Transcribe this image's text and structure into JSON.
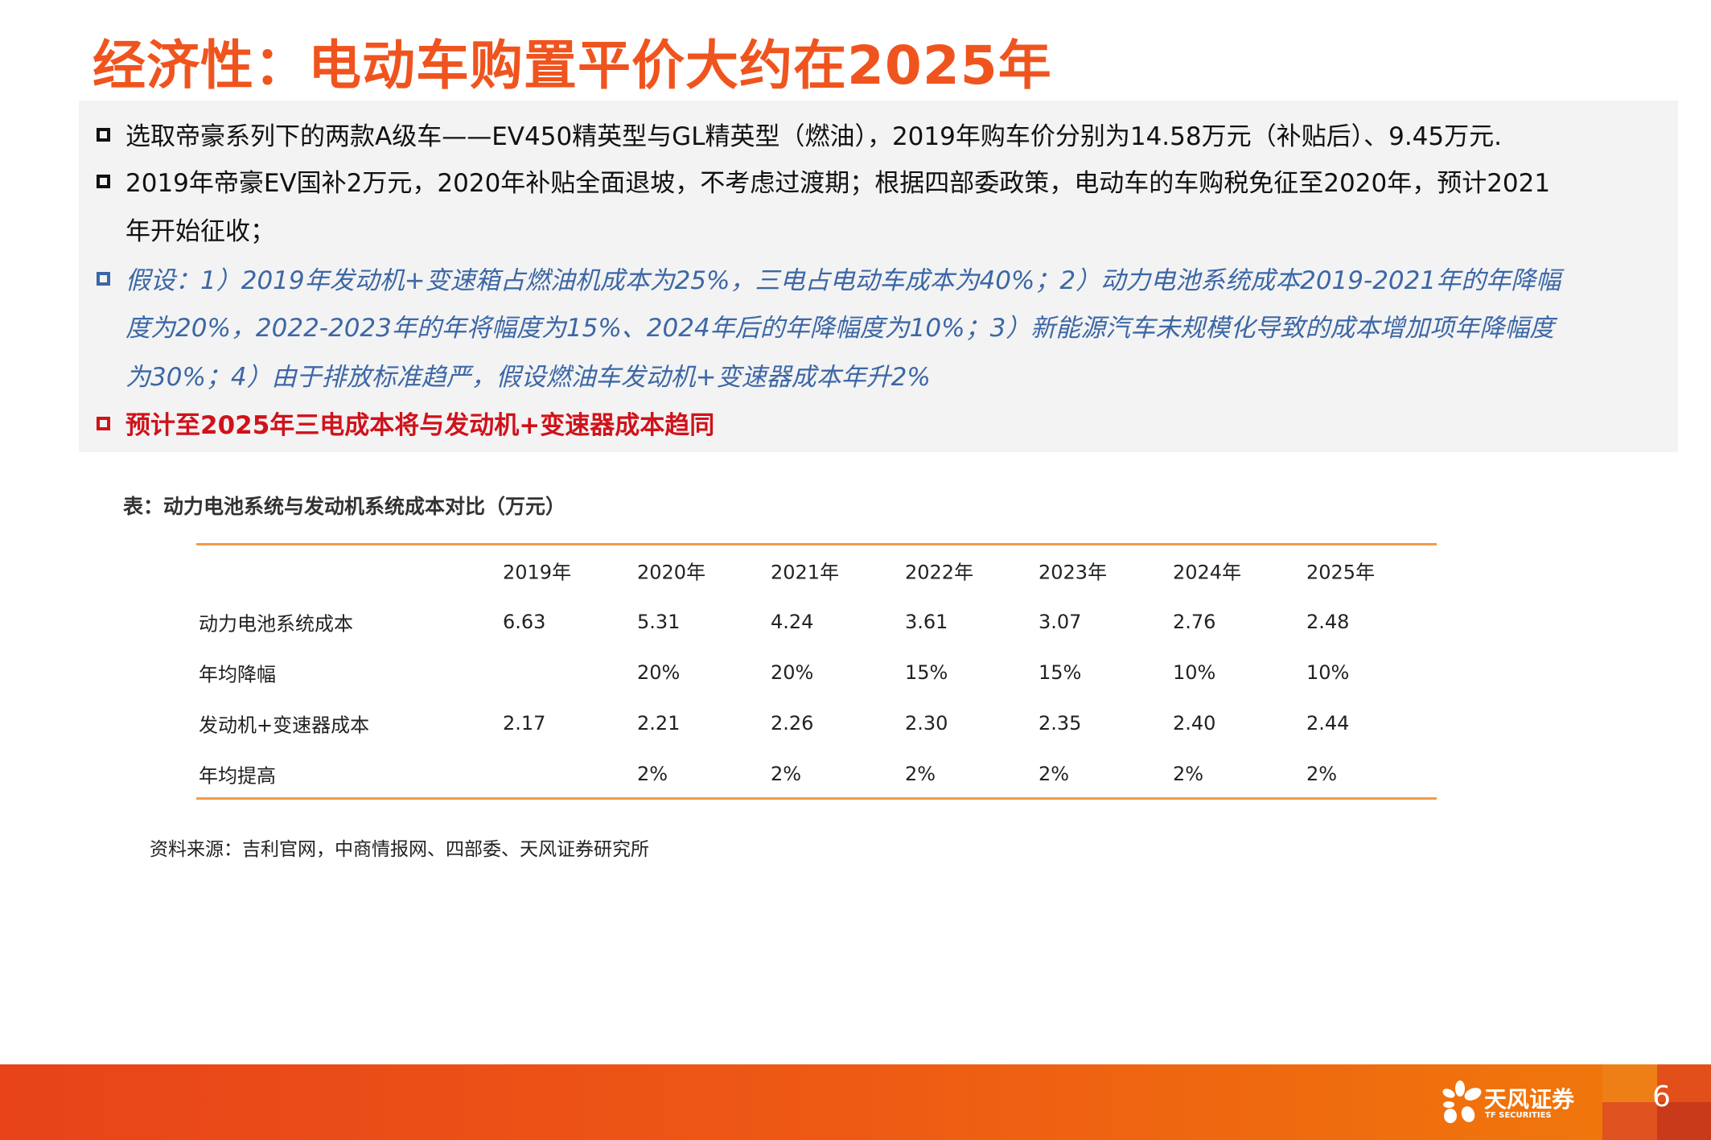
{
  "title": "经济性：电动车购置平价大约在2025年",
  "bullets": [
    {
      "text": "选取帝豪系列下的两款A级车——EV450精英型与GL精英型（燃油），2019年购车价分别为14.58万元（补贴后）、9.45万元.",
      "style": "normal"
    },
    {
      "text": "2019年帝豪EV国补2万元，2020年补贴全面退坡，不考虑过渡期；根据四部委政策，电动车的车购税免征至2020年，预计2021",
      "cont": "年开始征收；",
      "style": "normal"
    },
    {
      "text": "假设：1）2019年发动机+变速箱占燃油机成本为25%，三电占电动车成本为40%；2）动力电池系统成本2019-2021年的年降幅",
      "cont": "度为20%，2022-2023年的年将幅度为15%、2024年后的年降幅度为10%；3）新能源汽车未规模化导致的成本增加项年降幅度",
      "cont2": "为30%；4）由于排放标准趋严，假设燃油车发动机+变速器成本年升2%",
      "style": "blue"
    },
    {
      "text": "预计至2025年三电成本将与发动机+变速器成本趋同",
      "style": "red"
    }
  ],
  "table": {
    "caption": "表：动力电池系统与发动机系统成本对比（万元）",
    "headers": [
      "",
      "2019年",
      "2020年",
      "2021年",
      "2022年",
      "2023年",
      "2024年",
      "2025年"
    ],
    "rows": [
      [
        "动力电池系统成本",
        "6.63",
        "5.31",
        "4.24",
        "3.61",
        "3.07",
        "2.76",
        "2.48"
      ],
      [
        "年均降幅",
        "",
        "20%",
        "20%",
        "15%",
        "15%",
        "10%",
        "10%"
      ],
      [
        "发动机+变速器成本",
        "2.17",
        "2.21",
        "2.26",
        "2.30",
        "2.35",
        "2.40",
        "2.44"
      ],
      [
        "年均提高",
        "",
        "2%",
        "2%",
        "2%",
        "2%",
        "2%",
        "2%"
      ]
    ],
    "source": "资料来源：吉利官网，中商情报网、四部委、天风证券研究所"
  },
  "footer": {
    "logo_cn": "天风证券",
    "logo_en": "TF SECURITIES",
    "page_number": "6"
  },
  "colors": {
    "title": "#f0541e",
    "accent_blue": "#3c67a5",
    "accent_red": "#d0121b",
    "table_rule": "#f29a4a"
  }
}
